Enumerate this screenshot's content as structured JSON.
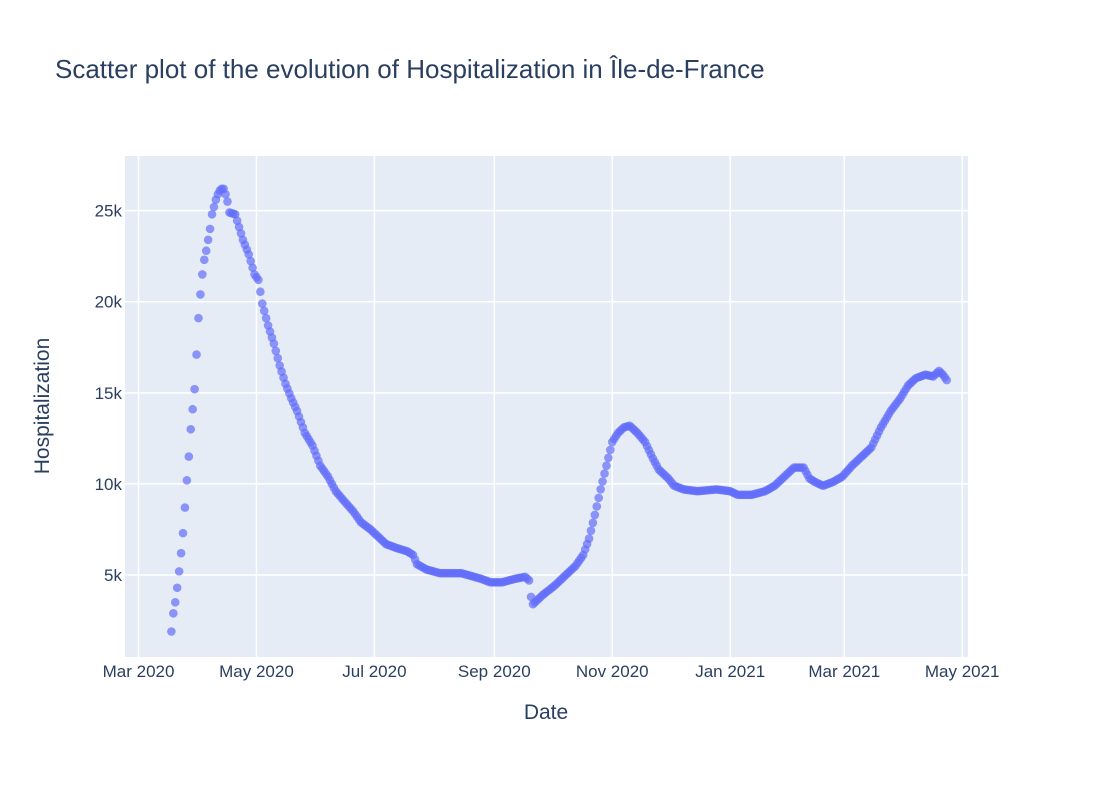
{
  "chart_data": {
    "type": "scatter",
    "title": "Scatter plot of the evolution of Hospitalization in Île-de-France",
    "xlabel": "Date",
    "ylabel": "Hospitalization",
    "x_range": [
      "2020-02-23",
      "2021-05-04"
    ],
    "y_range": [
      500,
      28000
    ],
    "x_ticks": [
      {
        "date": "2020-03-01",
        "label": "Mar 2020"
      },
      {
        "date": "2020-05-01",
        "label": "May 2020"
      },
      {
        "date": "2020-07-01",
        "label": "Jul 2020"
      },
      {
        "date": "2020-09-01",
        "label": "Sep 2020"
      },
      {
        "date": "2020-11-01",
        "label": "Nov 2020"
      },
      {
        "date": "2021-01-01",
        "label": "Jan 2021"
      },
      {
        "date": "2021-03-01",
        "label": "Mar 2021"
      },
      {
        "date": "2021-05-01",
        "label": "May 2021"
      }
    ],
    "y_ticks": [
      {
        "value": 5000,
        "label": "5k"
      },
      {
        "value": 10000,
        "label": "10k"
      },
      {
        "value": 15000,
        "label": "15k"
      },
      {
        "value": 20000,
        "label": "20k"
      },
      {
        "value": 25000,
        "label": "25k"
      }
    ],
    "grid": true,
    "marker_color": "#636efa",
    "plot_background": "#e5ecf6",
    "control_points": [
      [
        "2020-03-18",
        1900
      ],
      [
        "2020-03-19",
        2900
      ],
      [
        "2020-03-20",
        3500
      ],
      [
        "2020-03-21",
        4300
      ],
      [
        "2020-03-22",
        5200
      ],
      [
        "2020-03-23",
        6200
      ],
      [
        "2020-03-24",
        7300
      ],
      [
        "2020-03-25",
        8700
      ],
      [
        "2020-03-26",
        10200
      ],
      [
        "2020-03-27",
        11500
      ],
      [
        "2020-03-28",
        13000
      ],
      [
        "2020-03-29",
        14100
      ],
      [
        "2020-03-30",
        15200
      ],
      [
        "2020-03-31",
        17100
      ],
      [
        "2020-04-01",
        19100
      ],
      [
        "2020-04-02",
        20400
      ],
      [
        "2020-04-03",
        21500
      ],
      [
        "2020-04-04",
        22300
      ],
      [
        "2020-04-05",
        22800
      ],
      [
        "2020-04-06",
        23400
      ],
      [
        "2020-04-07",
        24000
      ],
      [
        "2020-04-08",
        24800
      ],
      [
        "2020-04-09",
        25200
      ],
      [
        "2020-04-10",
        25600
      ],
      [
        "2020-04-11",
        25900
      ],
      [
        "2020-04-12",
        26100
      ],
      [
        "2020-04-13",
        26200
      ],
      [
        "2020-04-14",
        26200
      ],
      [
        "2020-04-15",
        25900
      ],
      [
        "2020-04-16",
        25500
      ],
      [
        "2020-04-17",
        24900
      ],
      [
        "2020-04-20",
        24800
      ],
      [
        "2020-04-22",
        24100
      ],
      [
        "2020-04-24",
        23400
      ],
      [
        "2020-04-27",
        22600
      ],
      [
        "2020-04-30",
        21500
      ],
      [
        "2020-05-02",
        21200
      ],
      [
        "2020-05-04",
        19900
      ],
      [
        "2020-05-07",
        18700
      ],
      [
        "2020-05-10",
        17700
      ],
      [
        "2020-05-13",
        16500
      ],
      [
        "2020-05-16",
        15500
      ],
      [
        "2020-05-19",
        14700
      ],
      [
        "2020-05-22",
        14000
      ],
      [
        "2020-05-26",
        12800
      ],
      [
        "2020-05-30",
        12100
      ],
      [
        "2020-06-03",
        11000
      ],
      [
        "2020-06-07",
        10400
      ],
      [
        "2020-06-11",
        9600
      ],
      [
        "2020-06-15",
        9100
      ],
      [
        "2020-06-20",
        8500
      ],
      [
        "2020-06-24",
        7900
      ],
      [
        "2020-06-29",
        7500
      ],
      [
        "2020-07-03",
        7100
      ],
      [
        "2020-07-07",
        6700
      ],
      [
        "2020-07-12",
        6500
      ],
      [
        "2020-07-18",
        6300
      ],
      [
        "2020-07-21",
        6100
      ],
      [
        "2020-07-23",
        5600
      ],
      [
        "2020-07-28",
        5300
      ],
      [
        "2020-08-04",
        5100
      ],
      [
        "2020-08-15",
        5100
      ],
      [
        "2020-08-25",
        4800
      ],
      [
        "2020-08-30",
        4600
      ],
      [
        "2020-09-05",
        4600
      ],
      [
        "2020-09-12",
        4800
      ],
      [
        "2020-09-17",
        4900
      ],
      [
        "2020-09-19",
        4700
      ],
      [
        "2020-09-20",
        3800
      ],
      [
        "2020-09-21",
        3400
      ],
      [
        "2020-09-26",
        3900
      ],
      [
        "2020-10-02",
        4400
      ],
      [
        "2020-10-08",
        5000
      ],
      [
        "2020-10-13",
        5500
      ],
      [
        "2020-10-17",
        6100
      ],
      [
        "2020-10-20",
        7000
      ],
      [
        "2020-10-23",
        8300
      ],
      [
        "2020-10-26",
        9700
      ],
      [
        "2020-10-29",
        11000
      ],
      [
        "2020-11-01",
        12300
      ],
      [
        "2020-11-04",
        12800
      ],
      [
        "2020-11-07",
        13100
      ],
      [
        "2020-11-10",
        13200
      ],
      [
        "2020-11-14",
        12800
      ],
      [
        "2020-11-18",
        12300
      ],
      [
        "2020-11-22",
        11400
      ],
      [
        "2020-11-25",
        10800
      ],
      [
        "2020-11-30",
        10300
      ],
      [
        "2020-12-03",
        9900
      ],
      [
        "2020-12-08",
        9700
      ],
      [
        "2020-12-15",
        9600
      ],
      [
        "2020-12-25",
        9700
      ],
      [
        "2021-01-01",
        9600
      ],
      [
        "2021-01-05",
        9400
      ],
      [
        "2021-01-12",
        9400
      ],
      [
        "2021-01-19",
        9600
      ],
      [
        "2021-01-24",
        9900
      ],
      [
        "2021-01-29",
        10400
      ],
      [
        "2021-02-03",
        10900
      ],
      [
        "2021-02-08",
        10900
      ],
      [
        "2021-02-11",
        10300
      ],
      [
        "2021-02-14",
        10100
      ],
      [
        "2021-02-18",
        9900
      ],
      [
        "2021-02-23",
        10100
      ],
      [
        "2021-02-28",
        10400
      ],
      [
        "2021-03-05",
        11000
      ],
      [
        "2021-03-10",
        11500
      ],
      [
        "2021-03-15",
        12000
      ],
      [
        "2021-03-20",
        13100
      ],
      [
        "2021-03-25",
        14000
      ],
      [
        "2021-03-30",
        14700
      ],
      [
        "2021-04-03",
        15400
      ],
      [
        "2021-04-07",
        15800
      ],
      [
        "2021-04-12",
        16000
      ],
      [
        "2021-04-16",
        15900
      ],
      [
        "2021-04-19",
        16200
      ],
      [
        "2021-04-21",
        16000
      ],
      [
        "2021-04-23",
        15700
      ]
    ]
  }
}
